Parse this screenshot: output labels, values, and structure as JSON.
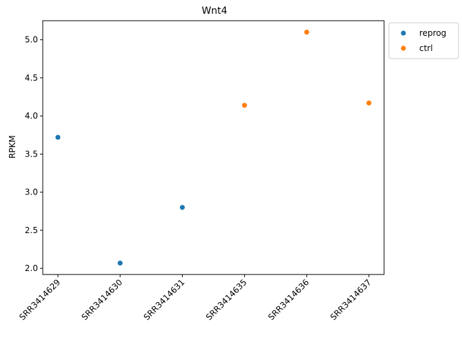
{
  "chart_data": {
    "type": "scatter",
    "title": "Wnt4",
    "xlabel": "",
    "ylabel": "RPKM",
    "categories": [
      "SRR3414629",
      "SRR3414630",
      "SRR3414631",
      "SRR3414635",
      "SRR3414636",
      "SRR3414637"
    ],
    "ylim": [
      1.92,
      5.25
    ],
    "yticks": [
      2.0,
      2.5,
      3.0,
      3.5,
      4.0,
      4.5,
      5.0
    ],
    "ytick_labels": [
      "2.0",
      "2.5",
      "3.0",
      "3.5",
      "4.0",
      "4.5",
      "5.0"
    ],
    "grid": false,
    "legend_position": "outside-top-right",
    "series": [
      {
        "name": "reprog",
        "color": "#1f77b4",
        "points": [
          {
            "x": "SRR3414629",
            "y": 3.72
          },
          {
            "x": "SRR3414630",
            "y": 2.07
          },
          {
            "x": "SRR3414631",
            "y": 2.8
          }
        ]
      },
      {
        "name": "ctrl",
        "color": "#ff7f0e",
        "points": [
          {
            "x": "SRR3414635",
            "y": 4.14
          },
          {
            "x": "SRR3414636",
            "y": 5.1
          },
          {
            "x": "SRR3414637",
            "y": 4.17
          }
        ]
      }
    ]
  }
}
